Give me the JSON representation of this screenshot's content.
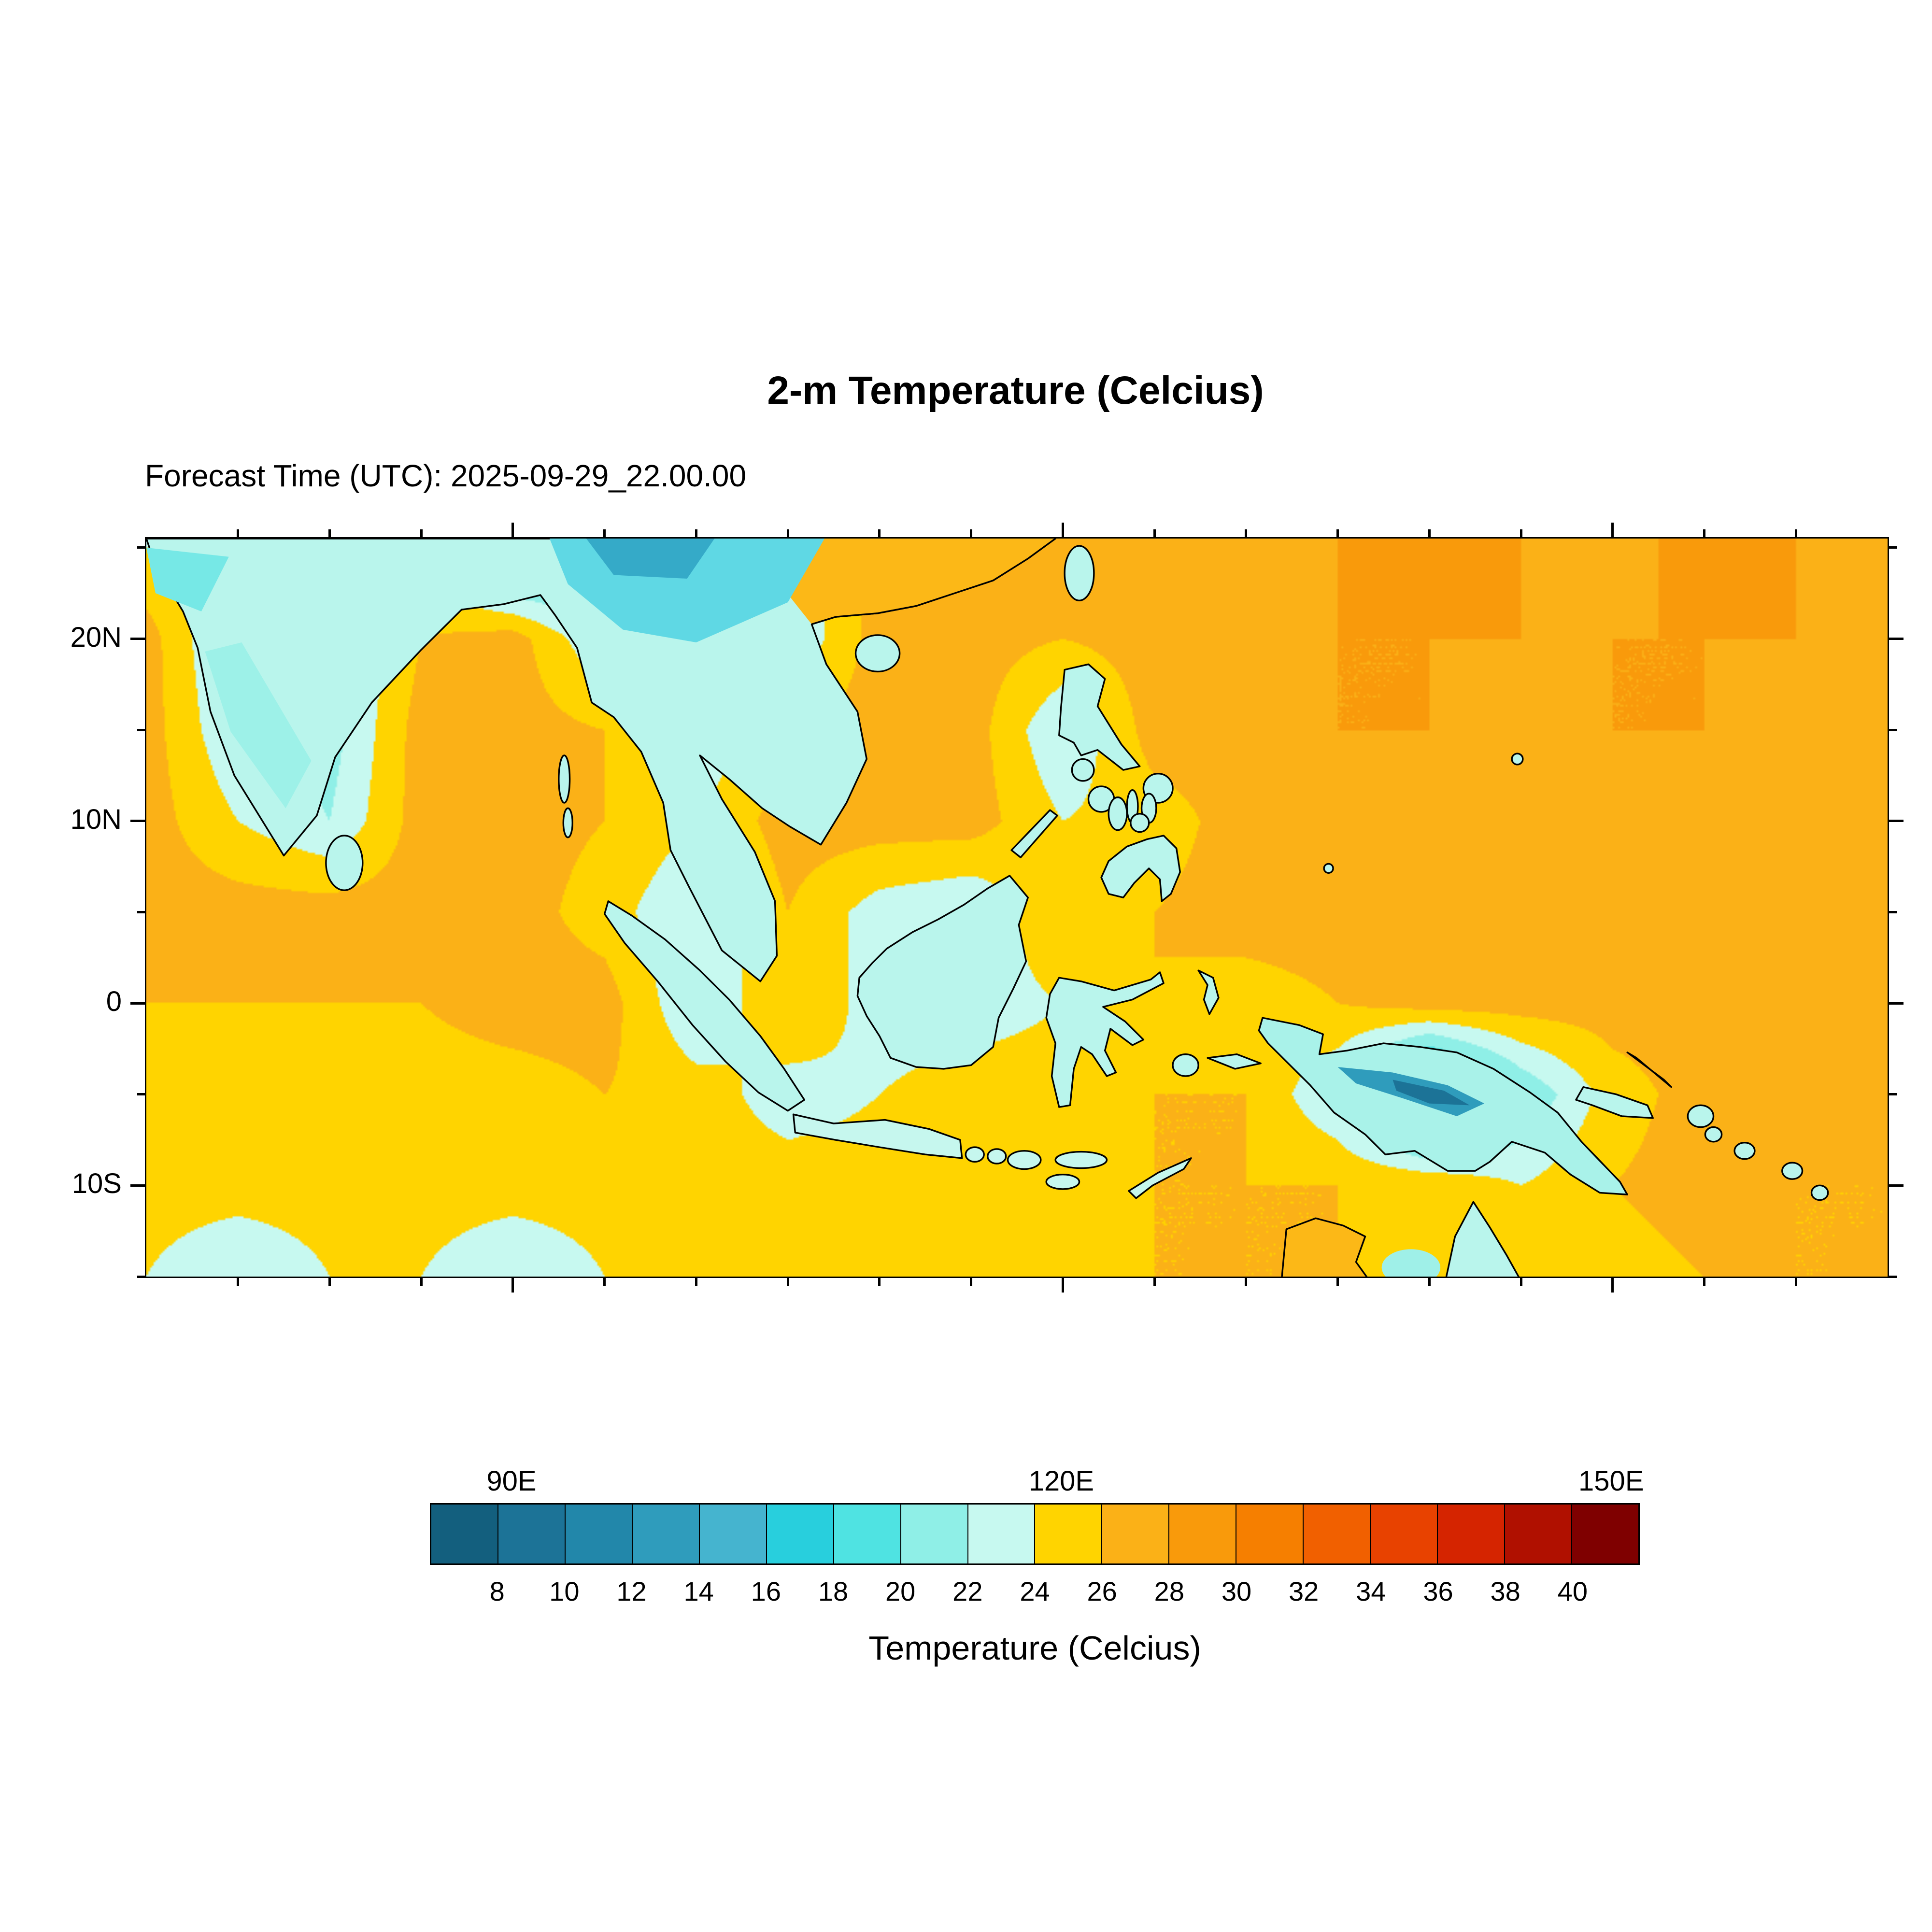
{
  "figure": {
    "title": "2-m Temperature (Celcius)",
    "subtitle": "Forecast Time (UTC): 2025-09-29_22.00.00",
    "colorbar_title": "Temperature (Celcius)"
  },
  "chart_data": {
    "type": "heatmap",
    "title": "2-m Temperature (Celcius)",
    "forecast_time_utc": "2025-09-29_22.00.00",
    "lon_range": [
      70,
      165
    ],
    "lat_range": [
      -15,
      25.5
    ],
    "lon_ticks": [
      {
        "deg": 90,
        "label": "90E"
      },
      {
        "deg": 120,
        "label": "120E"
      },
      {
        "deg": 150,
        "label": "150E"
      }
    ],
    "lat_ticks": [
      {
        "deg": 20,
        "label": "20N"
      },
      {
        "deg": 10,
        "label": "10N"
      },
      {
        "deg": 0,
        "label": "0"
      },
      {
        "deg": -10,
        "label": "10S"
      }
    ],
    "colorbar": {
      "label": "Temperature (Celcius)",
      "levels_c": [
        8,
        10,
        12,
        14,
        16,
        18,
        20,
        22,
        24,
        26,
        28,
        30,
        32,
        34,
        36,
        38,
        40
      ],
      "tick_labels": [
        "8",
        "10",
        "12",
        "14",
        "16",
        "18",
        "20",
        "22",
        "24",
        "26",
        "28",
        "30",
        "32",
        "34",
        "36",
        "38",
        "40"
      ],
      "colors": [
        "#135f7e",
        "#1c7397",
        "#2287aa",
        "#2f9cbc",
        "#45b4cf",
        "#28cfdd",
        "#4fe3e2",
        "#8fefe7",
        "#c7f9f0",
        "#ffd400",
        "#fbb117",
        "#f99a0b",
        "#f67f00",
        "#f16000",
        "#e84200",
        "#d52400",
        "#b01000",
        "#7f0000"
      ]
    },
    "grid": {
      "description": "Approximate 2-m temperature (C) read from the filled contours on a 5-degree grid",
      "lon_deg": [
        70,
        75,
        80,
        85,
        90,
        95,
        100,
        105,
        110,
        115,
        120,
        125,
        130,
        135,
        140,
        145,
        150,
        155,
        160,
        165
      ],
      "lat_deg": [
        25,
        20,
        15,
        10,
        5,
        0,
        -5,
        -10,
        -15
      ],
      "temperature_c": [
        [
          24,
          22,
          22,
          24,
          16,
          18,
          20,
          22,
          27,
          27,
          27,
          27,
          27,
          28,
          29,
          28,
          27,
          29,
          28,
          27
        ],
        [
          27,
          21,
          21,
          26,
          27,
          22,
          20,
          22,
          27,
          27,
          26,
          27,
          27,
          28,
          28,
          28,
          28,
          28,
          28,
          27
        ],
        [
          27,
          22,
          21,
          27,
          27,
          26,
          22,
          26,
          27,
          27,
          22,
          27,
          27,
          28,
          28,
          27,
          28,
          28,
          27,
          27
        ],
        [
          27,
          24,
          22,
          27,
          27,
          26,
          24,
          27,
          27,
          27,
          24,
          25,
          27,
          27,
          27,
          27,
          28,
          27,
          27,
          27
        ],
        [
          27,
          27,
          27,
          27,
          27,
          25,
          22,
          26,
          23,
          22,
          26,
          26,
          27,
          27,
          27,
          27,
          27,
          27,
          27,
          27
        ],
        [
          26,
          26,
          26,
          26,
          27,
          27,
          22,
          26,
          23,
          23,
          24,
          26,
          25,
          26,
          27,
          27,
          27,
          27,
          27,
          27
        ],
        [
          25,
          25,
          25,
          25,
          25,
          26,
          25,
          23,
          24,
          25,
          25,
          26,
          26,
          22,
          12,
          20,
          25,
          27,
          27,
          27
        ],
        [
          25,
          25,
          25,
          25,
          25,
          25,
          25,
          25,
          25,
          25,
          26,
          26,
          26,
          26,
          26,
          24,
          26,
          27,
          26,
          26
        ],
        [
          24,
          22,
          24,
          24,
          22,
          24,
          24,
          25,
          25,
          25,
          25,
          26,
          26,
          26,
          24,
          24,
          25,
          26,
          26,
          26
        ]
      ]
    }
  }
}
